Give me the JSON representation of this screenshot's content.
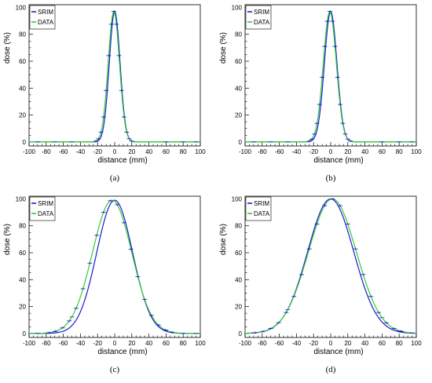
{
  "chart_data": [
    {
      "type": "line",
      "caption": "(a)",
      "xlabel": "distance (mm)",
      "ylabel": "dose (%)",
      "xlim": [
        -100,
        100
      ],
      "ylim": [
        -3,
        102
      ],
      "xticks": [
        -100,
        -80,
        -60,
        -40,
        -20,
        0,
        20,
        40,
        60,
        80,
        100
      ],
      "yticks": [
        0,
        20,
        40,
        60,
        80,
        100
      ],
      "legend_position": "top-left",
      "series": [
        {
          "name": "SRIM",
          "color": "#1a1ad0",
          "shape": "gaussian",
          "center": 0,
          "sigma": 6.3,
          "peak": 97
        },
        {
          "name": "DATA",
          "color": "#33cc33",
          "shape": "gaussian",
          "center": -1,
          "sigma": 6.6,
          "peak": 97
        }
      ]
    },
    {
      "type": "line",
      "caption": "(b)",
      "xlabel": "distance (mm)",
      "ylabel": "dose (%)",
      "xlim": [
        -100,
        100
      ],
      "ylim": [
        -3,
        102
      ],
      "xticks": [
        -100,
        -80,
        -60,
        -40,
        -20,
        0,
        20,
        40,
        60,
        80,
        100
      ],
      "yticks": [
        0,
        20,
        40,
        60,
        80,
        100
      ],
      "legend_position": "top-left",
      "series": [
        {
          "name": "SRIM",
          "color": "#1a1ad0",
          "shape": "gaussian",
          "center": 0,
          "sigma": 7.3,
          "peak": 97
        },
        {
          "name": "DATA",
          "color": "#33cc33",
          "shape": "gaussian",
          "center": -1,
          "sigma": 7.6,
          "peak": 97
        }
      ]
    },
    {
      "type": "line",
      "caption": "(c)",
      "xlabel": "distance (mm)",
      "ylabel": "dose (%)",
      "xlim": [
        -100,
        100
      ],
      "ylim": [
        -3,
        102
      ],
      "xticks": [
        -100,
        -80,
        -60,
        -40,
        -20,
        0,
        20,
        40,
        60,
        80,
        100
      ],
      "yticks": [
        0,
        20,
        40,
        60,
        80,
        100
      ],
      "legend_position": "top-left",
      "series": [
        {
          "name": "SRIM",
          "color": "#1a1ad0",
          "shape": "gaussian",
          "center": 0,
          "sigma": 21,
          "peak": 99
        },
        {
          "name": "DATA",
          "color": "#33cc33",
          "shape": "gaussian",
          "center": -3,
          "sigma": 23,
          "peak": 99
        }
      ]
    },
    {
      "type": "line",
      "caption": "(d)",
      "xlabel": "distance (mm)",
      "ylabel": "dose (%)",
      "xlim": [
        -100,
        100
      ],
      "ylim": [
        -3,
        102
      ],
      "xticks": [
        -100,
        -80,
        -60,
        -40,
        -20,
        0,
        20,
        40,
        60,
        80,
        100
      ],
      "yticks": [
        0,
        20,
        40,
        60,
        80,
        100
      ],
      "legend_position": "top-left",
      "series": [
        {
          "name": "SRIM",
          "color": "#1a1ad0",
          "shape": "gaussian",
          "center": 0,
          "sigma": 27,
          "peak": 100
        },
        {
          "name": "DATA",
          "color": "#33cc33",
          "shape": "gaussian",
          "center": 2,
          "sigma": 28,
          "peak": 100
        }
      ]
    }
  ]
}
